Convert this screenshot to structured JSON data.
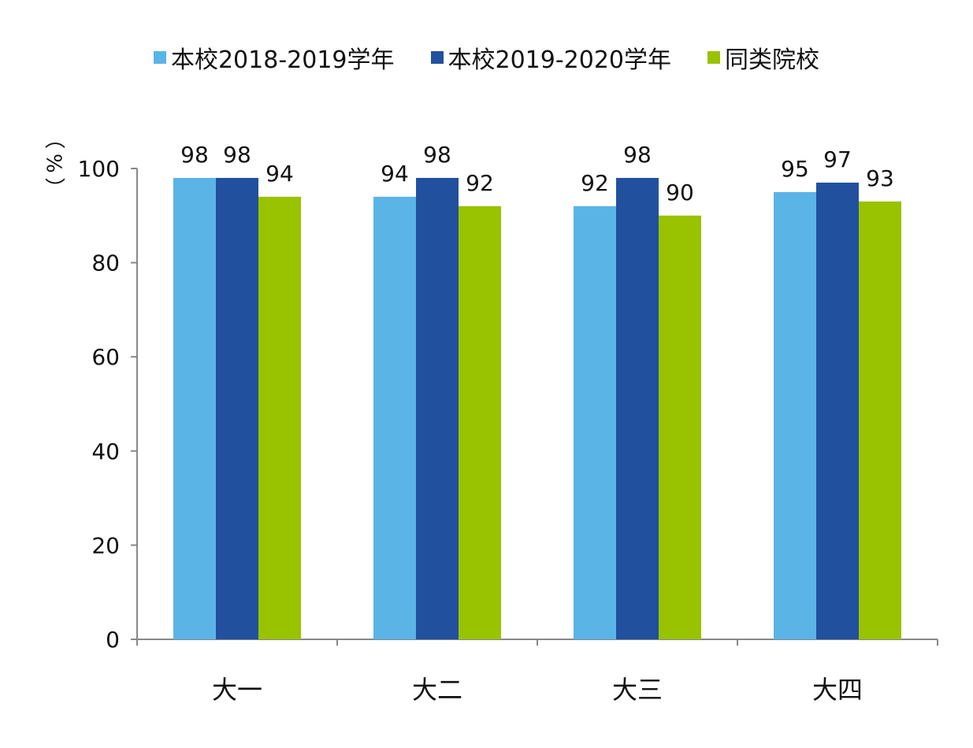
{
  "chart_data": {
    "type": "bar",
    "categories": [
      "大一",
      "大二",
      "大三",
      "大四"
    ],
    "series": [
      {
        "name": "本校2018-2019学年",
        "color": "#5ab4e5",
        "values": [
          98,
          94,
          92,
          95
        ]
      },
      {
        "name": "本校2019-2020学年",
        "color": "#21509e",
        "values": [
          98,
          98,
          98,
          97
        ]
      },
      {
        "name": "同类院校",
        "color": "#99c200",
        "values": [
          94,
          92,
          90,
          93
        ]
      }
    ],
    "ylabel": "（%）",
    "ylim": [
      0,
      100
    ],
    "yticks": [
      0,
      20,
      40,
      60,
      80,
      100
    ],
    "legend_position": "top-center",
    "grid": false
  }
}
